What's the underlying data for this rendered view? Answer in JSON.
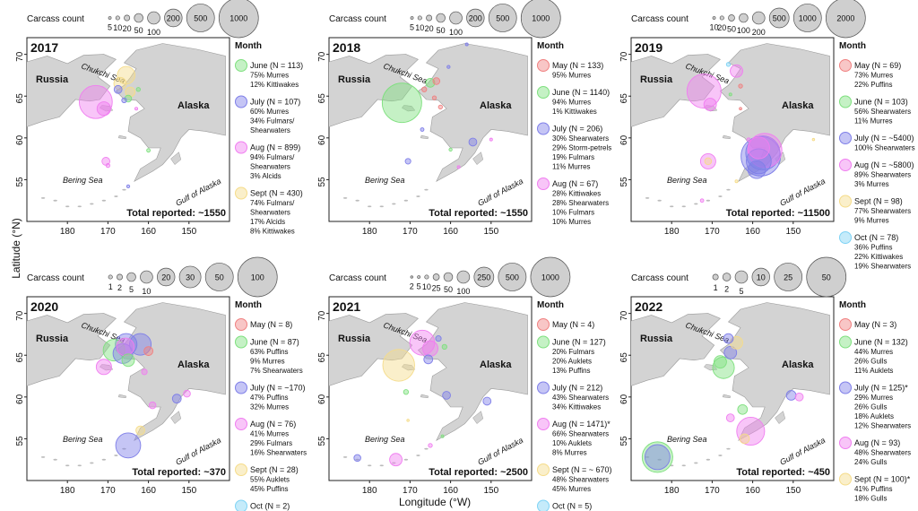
{
  "figure": {
    "ylabel": "Latitude (°N)",
    "xlabel": "Longitude (°W)",
    "map_labels": {
      "russia": "Russia",
      "alaska": "Alaska",
      "chukchi": "Chukchi Sea",
      "bering": "Bering Sea",
      "gulf": "Gulf of Alaska"
    },
    "size_legend_title": "Carcass count",
    "month_legend_title": "Month"
  },
  "colors": {
    "May": "#f08080",
    "June": "#7ee07e",
    "July": "#7f7fe8",
    "Aug": "#f07ef0",
    "Sept": "#f5dc8a",
    "Oct": "#7fd3f5"
  },
  "chart_data": [
    {
      "type": "scatter",
      "year": "2017",
      "total": "Total reported: ~1550",
      "xlim": [
        190,
        140
      ],
      "ylim": [
        50,
        72
      ],
      "x_ticks": [
        "180",
        "170",
        "160",
        "150"
      ],
      "y_ticks": [
        "70",
        "65",
        "60",
        "55"
      ],
      "size_legend": [
        "5",
        "10",
        "20",
        "50",
        "100",
        "200",
        "500",
        "1000"
      ],
      "legend": [
        {
          "month": "June",
          "lines": [
            "June (N = 113)",
            "75% Murres",
            "12% Kittiwakes"
          ]
        },
        {
          "month": "July",
          "lines": [
            "July (N = 107)",
            "60% Murres",
            "34% Fulmars/",
            "Shearwaters"
          ]
        },
        {
          "month": "Aug",
          "lines": [
            "Aug (N = 899)",
            "94% Fulmars/",
            "Shearwaters",
            "3% Alcids"
          ]
        },
        {
          "month": "Sept",
          "lines": [
            "Sept (N = 430)",
            "74% Fulmars/",
            "Shearwaters",
            "17% Alcids",
            "8% Kittiwakes"
          ]
        }
      ],
      "points": [
        {
          "lon": 173,
          "lat": 64.3,
          "count": 700,
          "month": "Aug"
        },
        {
          "lon": 171,
          "lat": 63.5,
          "count": 120,
          "month": "Aug"
        },
        {
          "lon": 165.5,
          "lat": 67.5,
          "count": 200,
          "month": "Sept"
        },
        {
          "lon": 167,
          "lat": 66.5,
          "count": 100,
          "month": "Sept"
        },
        {
          "lon": 164.5,
          "lat": 65.5,
          "count": 60,
          "month": "Sept"
        },
        {
          "lon": 167.5,
          "lat": 65.8,
          "count": 40,
          "month": "July"
        },
        {
          "lon": 165,
          "lat": 64.7,
          "count": 30,
          "month": "June"
        },
        {
          "lon": 166,
          "lat": 64.5,
          "count": 15,
          "month": "July"
        },
        {
          "lon": 162.5,
          "lat": 65.8,
          "count": 10,
          "month": "June"
        },
        {
          "lon": 170.5,
          "lat": 57.2,
          "count": 40,
          "month": "Aug"
        },
        {
          "lon": 170,
          "lat": 56.7,
          "count": 10,
          "month": "Aug"
        },
        {
          "lon": 163,
          "lat": 63.5,
          "count": 5,
          "month": "Aug"
        },
        {
          "lon": 160,
          "lat": 58.5,
          "count": 8,
          "month": "June"
        },
        {
          "lon": 165,
          "lat": 54.2,
          "count": 6,
          "month": "July"
        }
      ]
    },
    {
      "type": "scatter",
      "year": "2018",
      "total": "Total reported: ~1550",
      "xlim": [
        190,
        140
      ],
      "ylim": [
        50,
        72
      ],
      "x_ticks": [
        "180",
        "170",
        "160",
        "150"
      ],
      "y_ticks": [
        "70",
        "65",
        "60",
        "55"
      ],
      "size_legend": [
        "5",
        "10",
        "20",
        "50",
        "100",
        "200",
        "500",
        "1000"
      ],
      "legend": [
        {
          "month": "May",
          "lines": [
            "May (N = 133)",
            "95% Murres"
          ]
        },
        {
          "month": "June",
          "lines": [
            "June (N = 1140)",
            "94% Murres",
            "1% Kittiwakes"
          ]
        },
        {
          "month": "July",
          "lines": [
            "July (N = 206)",
            "30% Shearwaters",
            "29% Storm-petrels",
            "19% Fulmars",
            "11% Murres"
          ]
        },
        {
          "month": "Aug",
          "lines": [
            "Aug (N = 67)",
            "28% Kittiwakes",
            "28% Shearwaters",
            "10% Fulmars",
            "10% Murres"
          ]
        }
      ],
      "points": [
        {
          "lon": 172,
          "lat": 64.2,
          "count": 1000,
          "month": "June"
        },
        {
          "lon": 165,
          "lat": 66.6,
          "count": 50,
          "month": "June"
        },
        {
          "lon": 163.5,
          "lat": 66.8,
          "count": 30,
          "month": "May"
        },
        {
          "lon": 166.5,
          "lat": 65.8,
          "count": 15,
          "month": "May"
        },
        {
          "lon": 164,
          "lat": 64.8,
          "count": 10,
          "month": "May"
        },
        {
          "lon": 162.5,
          "lat": 63.7,
          "count": 10,
          "month": "May"
        },
        {
          "lon": 160.5,
          "lat": 68.5,
          "count": 6,
          "month": "July"
        },
        {
          "lon": 156,
          "lat": 71.2,
          "count": 5,
          "month": "July"
        },
        {
          "lon": 167,
          "lat": 61.0,
          "count": 8,
          "month": "July"
        },
        {
          "lon": 170.5,
          "lat": 57.2,
          "count": 20,
          "month": "July"
        },
        {
          "lon": 154.5,
          "lat": 59.5,
          "count": 40,
          "month": "July"
        },
        {
          "lon": 160,
          "lat": 58.6,
          "count": 6,
          "month": "June"
        },
        {
          "lon": 158,
          "lat": 56.5,
          "count": 5,
          "month": "Aug"
        },
        {
          "lon": 150,
          "lat": 59.8,
          "count": 5,
          "month": "Aug"
        }
      ]
    },
    {
      "type": "scatter",
      "year": "2019",
      "total": "Total reported: ~11500",
      "xlim": [
        190,
        140
      ],
      "ylim": [
        50,
        72
      ],
      "x_ticks": [
        "180",
        "170",
        "160",
        "150"
      ],
      "y_ticks": [
        "70",
        "65",
        "60",
        "55"
      ],
      "size_legend": [
        "10",
        "20",
        "50",
        "100",
        "200",
        "500",
        "1000",
        "2000"
      ],
      "legend": [
        {
          "month": "May",
          "lines": [
            "May (N = 69)",
            "73% Murres",
            "22% Puffins"
          ]
        },
        {
          "month": "June",
          "lines": [
            "June (N = 103)",
            "56% Shearwaters",
            "11% Murres"
          ]
        },
        {
          "month": "July",
          "lines": [
            "July (N = ~5400)",
            "100% Shearwaters"
          ]
        },
        {
          "month": "Aug",
          "lines": [
            "Aug (N = ~5800)",
            "89% Shearwaters",
            "3% Murres"
          ]
        },
        {
          "month": "Sept",
          "lines": [
            "Sept (N = 98)",
            "77% Shearwaters",
            "9% Murres"
          ]
        },
        {
          "month": "Oct",
          "lines": [
            "Oct (N = 78)",
            "36% Puffins",
            "22% Kittiwakes",
            "19% Shearwaters"
          ]
        }
      ],
      "points": [
        {
          "lon": 172,
          "lat": 65.6,
          "count": 1500,
          "month": "Aug"
        },
        {
          "lon": 170.5,
          "lat": 64.0,
          "count": 200,
          "month": "Aug"
        },
        {
          "lon": 164,
          "lat": 68.0,
          "count": 200,
          "month": "Aug"
        },
        {
          "lon": 166,
          "lat": 68.8,
          "count": 20,
          "month": "Oct"
        },
        {
          "lon": 163,
          "lat": 66.2,
          "count": 20,
          "month": "May"
        },
        {
          "lon": 165.5,
          "lat": 65.2,
          "count": 10,
          "month": "June"
        },
        {
          "lon": 158,
          "lat": 57.8,
          "count": 2000,
          "month": "July"
        },
        {
          "lon": 157.5,
          "lat": 58.2,
          "count": 1500,
          "month": "July"
        },
        {
          "lon": 158.5,
          "lat": 57.2,
          "count": 800,
          "month": "July"
        },
        {
          "lon": 159,
          "lat": 56.2,
          "count": 400,
          "month": "July"
        },
        {
          "lon": 157,
          "lat": 58.5,
          "count": 1500,
          "month": "Aug"
        },
        {
          "lon": 158.5,
          "lat": 58.8,
          "count": 600,
          "month": "Aug"
        },
        {
          "lon": 171,
          "lat": 57.2,
          "count": 300,
          "month": "Aug"
        },
        {
          "lon": 171,
          "lat": 57.2,
          "count": 60,
          "month": "Sept"
        },
        {
          "lon": 161,
          "lat": 59.8,
          "count": 15,
          "month": "Aug"
        },
        {
          "lon": 163,
          "lat": 63.5,
          "count": 8,
          "month": "May"
        },
        {
          "lon": 164,
          "lat": 54.8,
          "count": 10,
          "month": "Sept"
        },
        {
          "lon": 172.5,
          "lat": 52.5,
          "count": 15,
          "month": "Aug"
        },
        {
          "lon": 145,
          "lat": 59.8,
          "count": 5,
          "month": "Sept"
        }
      ]
    },
    {
      "type": "scatter",
      "year": "2020",
      "total": "Total reported: ~370",
      "xlim": [
        190,
        140
      ],
      "ylim": [
        50,
        72
      ],
      "x_ticks": [
        "180",
        "170",
        "160",
        "150"
      ],
      "y_ticks": [
        "70",
        "65",
        "60",
        "55"
      ],
      "size_legend": [
        "1",
        "2",
        "5",
        "10",
        "20",
        "30",
        "50",
        "100"
      ],
      "legend": [
        {
          "month": "May",
          "lines": [
            "May (N = 8)"
          ]
        },
        {
          "month": "June",
          "lines": [
            "June (N = 87)",
            "63% Puffins",
            "9% Murres",
            "7% Shearwaters"
          ]
        },
        {
          "month": "July",
          "lines": [
            "July (N = ~170)",
            "47% Puffins",
            "32% Murres"
          ]
        },
        {
          "month": "Aug",
          "lines": [
            "Aug (N = 76)",
            "41% Murres",
            "29% Fulmars",
            "16% Shearwaters"
          ]
        },
        {
          "month": "Sept",
          "lines": [
            "Sept (N = 28)",
            "55% Auklets",
            "45% Puffins"
          ]
        },
        {
          "month": "Oct",
          "lines": [
            "Oct (N = 2)"
          ]
        }
      ],
      "points": [
        {
          "lon": 165.5,
          "lat": 66.3,
          "count": 30,
          "month": "July"
        },
        {
          "lon": 166.3,
          "lat": 65.2,
          "count": 25,
          "month": "July"
        },
        {
          "lon": 165.7,
          "lat": 66.0,
          "count": 20,
          "month": "Aug"
        },
        {
          "lon": 168.5,
          "lat": 65.6,
          "count": 30,
          "month": "June"
        },
        {
          "lon": 162,
          "lat": 66.3,
          "count": 30,
          "month": "July"
        },
        {
          "lon": 171,
          "lat": 63.6,
          "count": 15,
          "month": "Aug"
        },
        {
          "lon": 165,
          "lat": 64.4,
          "count": 10,
          "month": "June"
        },
        {
          "lon": 160,
          "lat": 65.5,
          "count": 5,
          "month": "May"
        },
        {
          "lon": 165,
          "lat": 54.2,
          "count": 40,
          "month": "July"
        },
        {
          "lon": 162,
          "lat": 56.0,
          "count": 5,
          "month": "Sept"
        },
        {
          "lon": 159,
          "lat": 59.0,
          "count": 3,
          "month": "Aug"
        },
        {
          "lon": 153,
          "lat": 59.8,
          "count": 5,
          "month": "July"
        },
        {
          "lon": 150.5,
          "lat": 60.4,
          "count": 3,
          "month": "Aug"
        },
        {
          "lon": 161,
          "lat": 63.0,
          "count": 2,
          "month": "Aug"
        }
      ]
    },
    {
      "type": "scatter",
      "year": "2021",
      "total": "Total reported: ~2500",
      "xlim": [
        190,
        140
      ],
      "ylim": [
        50,
        72
      ],
      "x_ticks": [
        "180",
        "170",
        "160",
        "150"
      ],
      "y_ticks": [
        "70",
        "65",
        "60",
        "55"
      ],
      "size_legend": [
        "2",
        "5",
        "10",
        "25",
        "50",
        "100",
        "250",
        "500",
        "1000"
      ],
      "legend": [
        {
          "month": "May",
          "lines": [
            "May (N = 4)"
          ]
        },
        {
          "month": "June",
          "lines": [
            "June (N = 127)",
            "20% Fulmars",
            "20% Auklets",
            "13% Puffins"
          ]
        },
        {
          "month": "July",
          "lines": [
            "July (N = 212)",
            "43% Shearwaters",
            "34% Kittiwakes"
          ]
        },
        {
          "month": "Aug",
          "lines": [
            "Aug (N = 1471)*",
            "66% Shearwaters",
            "10% Auklets",
            "8% Murres"
          ]
        },
        {
          "month": "Sept",
          "lines": [
            "Sept (N = ~ 670)",
            "48% Shearwaters",
            "45% Murres"
          ]
        },
        {
          "month": "Oct",
          "lines": [
            "Oct (N = 5)"
          ]
        }
      ],
      "points": [
        {
          "lon": 172.8,
          "lat": 63.8,
          "count": 650,
          "month": "Sept"
        },
        {
          "lon": 167,
          "lat": 66.5,
          "count": 400,
          "month": "Aug"
        },
        {
          "lon": 165,
          "lat": 65.8,
          "count": 150,
          "month": "Aug"
        },
        {
          "lon": 165.5,
          "lat": 64.5,
          "count": 50,
          "month": "July"
        },
        {
          "lon": 163,
          "lat": 67.0,
          "count": 20,
          "month": "July"
        },
        {
          "lon": 161.5,
          "lat": 66.0,
          "count": 15,
          "month": "June"
        },
        {
          "lon": 171,
          "lat": 60.6,
          "count": 15,
          "month": "June"
        },
        {
          "lon": 161,
          "lat": 60.2,
          "count": 40,
          "month": "July"
        },
        {
          "lon": 151,
          "lat": 59.5,
          "count": 40,
          "month": "July"
        },
        {
          "lon": 173.5,
          "lat": 52.5,
          "count": 100,
          "month": "Aug"
        },
        {
          "lon": 183,
          "lat": 52.7,
          "count": 30,
          "month": "July"
        },
        {
          "lon": 170.5,
          "lat": 57.2,
          "count": 3,
          "month": "Sept"
        },
        {
          "lon": 165,
          "lat": 54.2,
          "count": 10,
          "month": "Aug"
        },
        {
          "lon": 162,
          "lat": 55.3,
          "count": 5,
          "month": "June"
        }
      ]
    },
    {
      "type": "scatter",
      "year": "2022",
      "total": "Total reported: ~450",
      "xlim": [
        190,
        140
      ],
      "ylim": [
        50,
        72
      ],
      "x_ticks": [
        "180",
        "170",
        "160",
        "150"
      ],
      "y_ticks": [
        "70",
        "65",
        "60",
        "55"
      ],
      "size_legend": [
        "1",
        "2",
        "5",
        "10",
        "25",
        "50"
      ],
      "legend": [
        {
          "month": "May",
          "lines": [
            "May (N = 3)"
          ]
        },
        {
          "month": "June",
          "lines": [
            "June (N = 132)",
            "44% Murres",
            "26% Gulls",
            "11% Auklets"
          ]
        },
        {
          "month": "July",
          "lines": [
            "July (N = 125)*",
            "29% Murres",
            "26% Gulls",
            "18% Auklets",
            "12% Shearwaters"
          ]
        },
        {
          "month": "Aug",
          "lines": [
            "Aug (N = 93)",
            "48% Shearwaters",
            "24% Gulls"
          ]
        },
        {
          "month": "Sept",
          "lines": [
            "Sept (N = 100)*",
            "41% Puffins",
            "18% Gulls"
          ]
        }
      ],
      "points": [
        {
          "lon": 167.2,
          "lat": 63.5,
          "count": 15,
          "month": "June"
        },
        {
          "lon": 168,
          "lat": 64.2,
          "count": 5,
          "month": "June"
        },
        {
          "lon": 165.5,
          "lat": 65.3,
          "count": 5,
          "month": "July"
        },
        {
          "lon": 164,
          "lat": 66.5,
          "count": 5,
          "month": "Sept"
        },
        {
          "lon": 166,
          "lat": 67.0,
          "count": 3,
          "month": "July"
        },
        {
          "lon": 183.5,
          "lat": 52.8,
          "count": 30,
          "month": "June"
        },
        {
          "lon": 183.5,
          "lat": 52.8,
          "count": 20,
          "month": "July"
        },
        {
          "lon": 160.5,
          "lat": 55.9,
          "count": 25,
          "month": "Aug"
        },
        {
          "lon": 162.5,
          "lat": 58.5,
          "count": 3,
          "month": "June"
        },
        {
          "lon": 165.5,
          "lat": 57.5,
          "count": 2,
          "month": "Aug"
        },
        {
          "lon": 150.5,
          "lat": 60.2,
          "count": 3,
          "month": "July"
        },
        {
          "lon": 148.5,
          "lat": 60.0,
          "count": 2,
          "month": "Aug"
        },
        {
          "lon": 162,
          "lat": 55.0,
          "count": 3,
          "month": "Sept"
        }
      ]
    }
  ]
}
